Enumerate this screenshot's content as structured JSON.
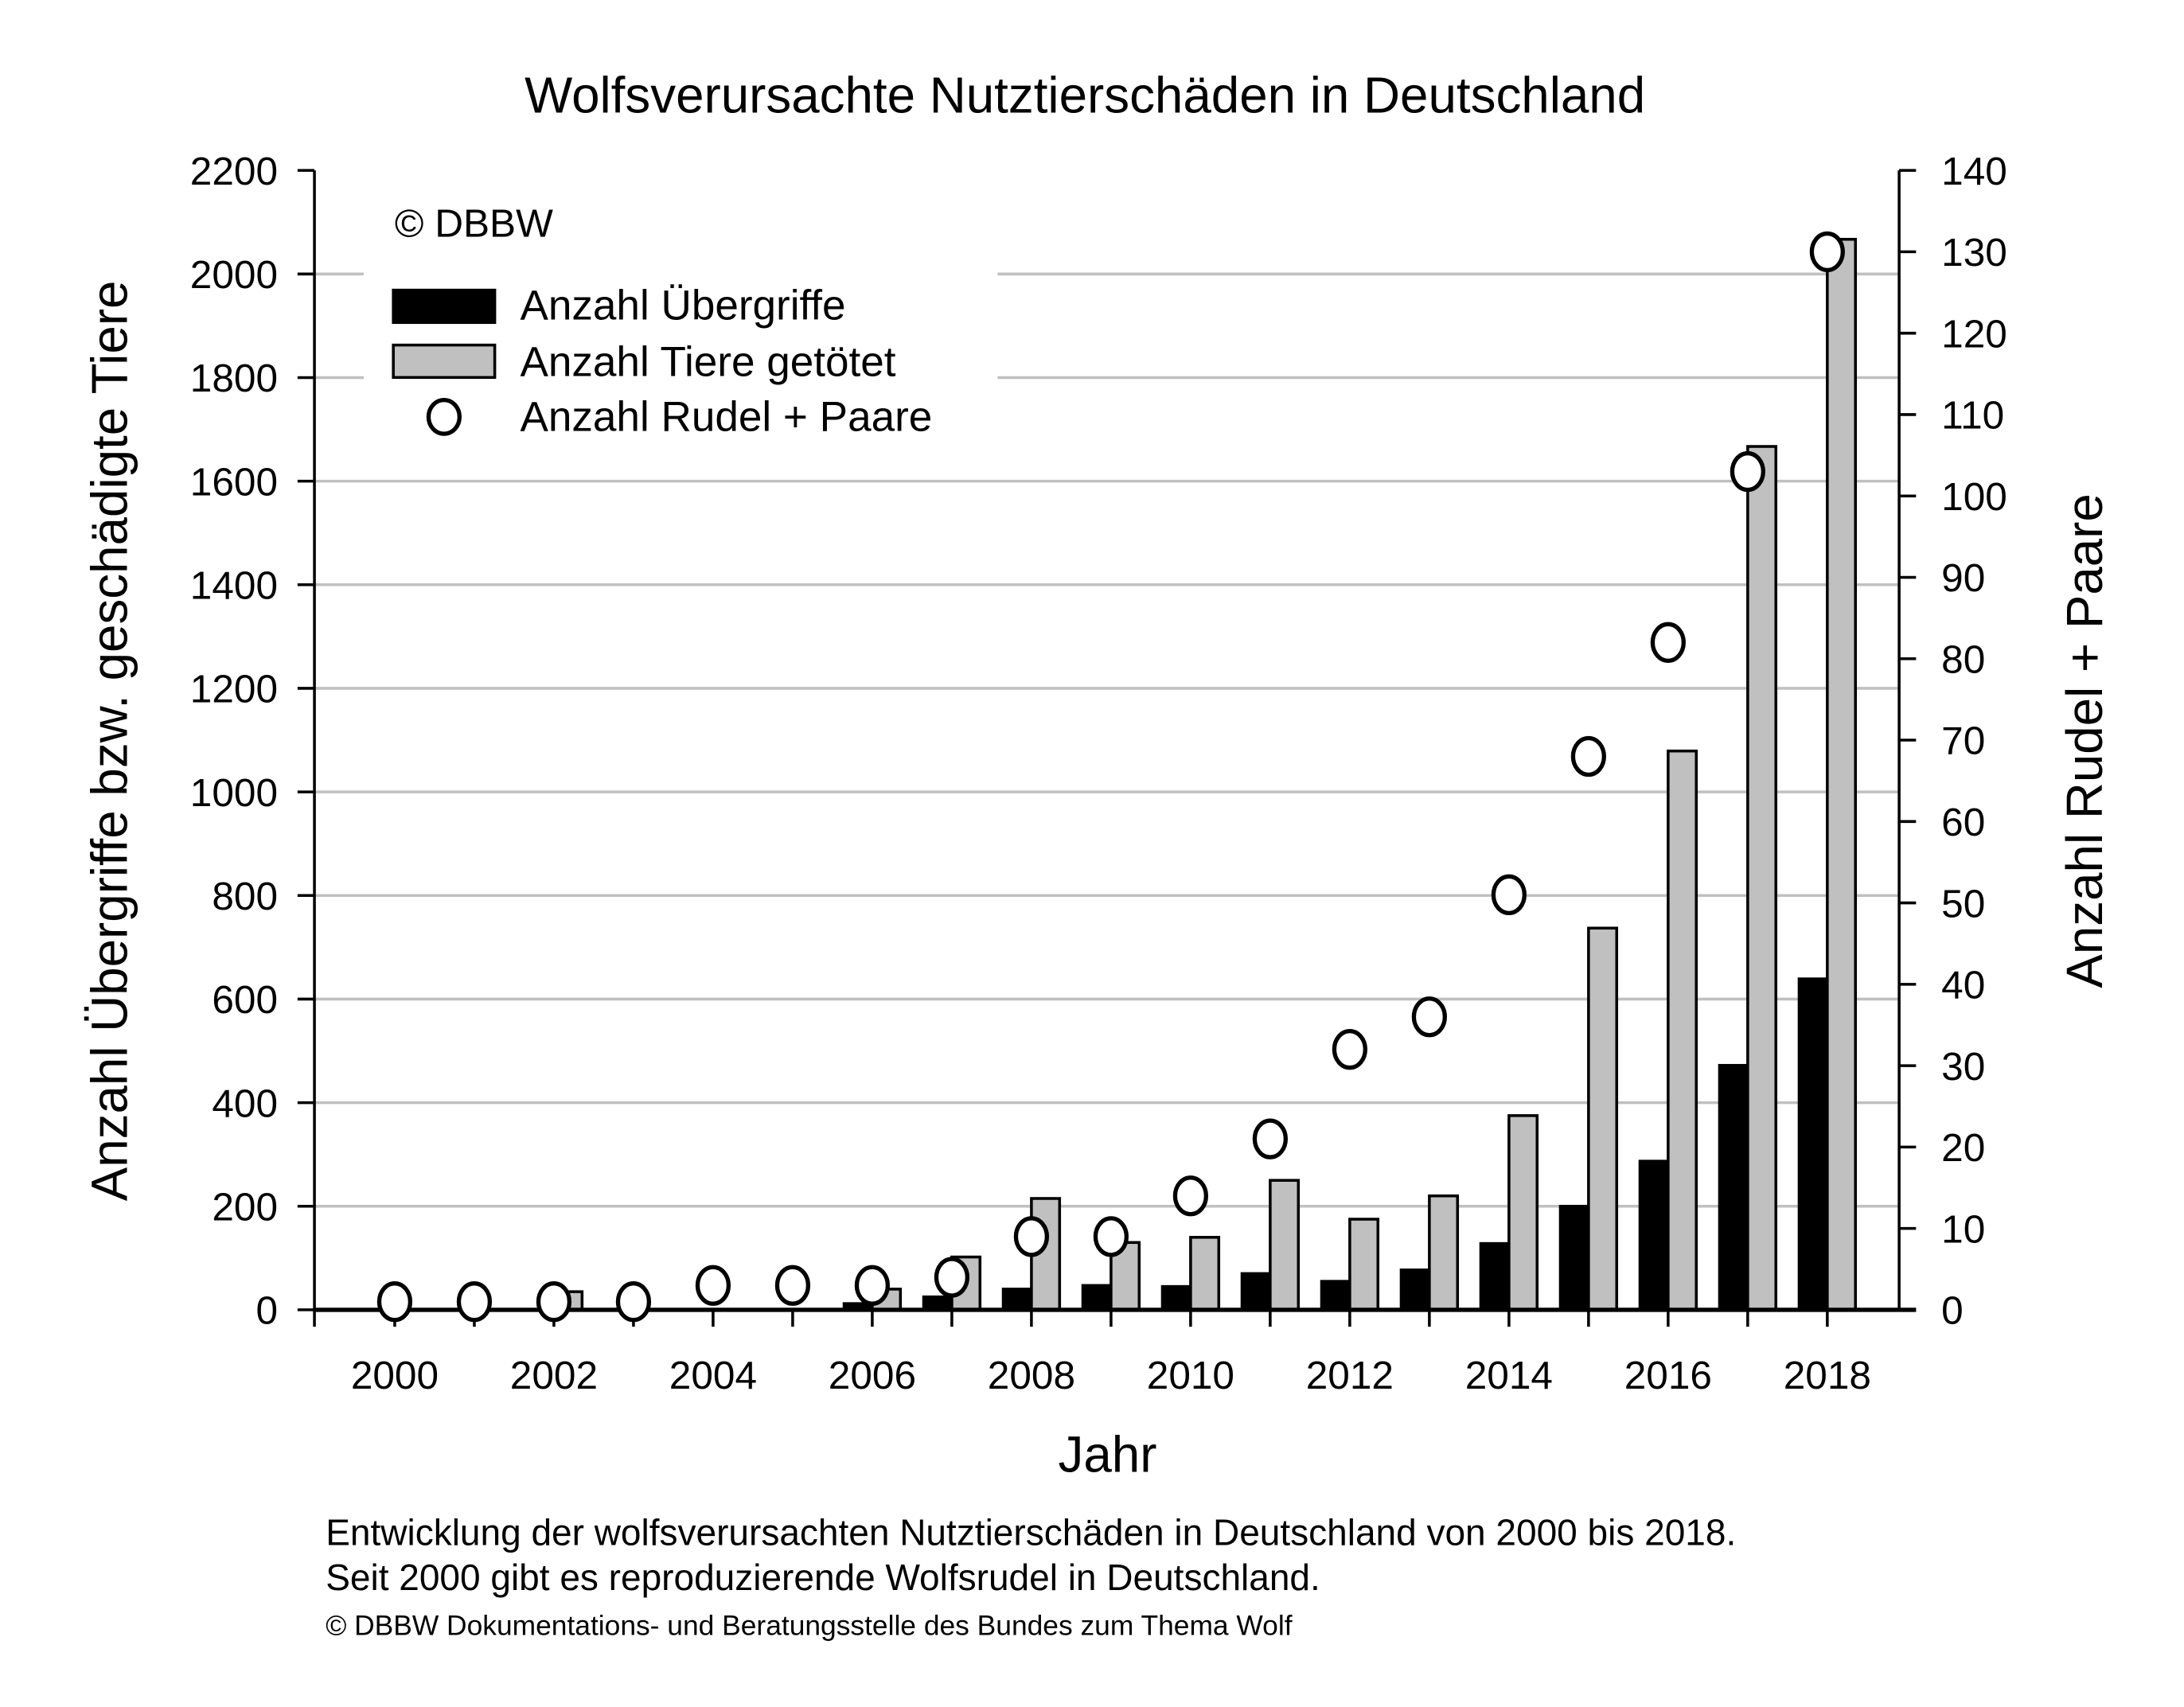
{
  "chart_data": {
    "type": "bar",
    "title": "Wolfsverursachte Nutztierschäden in Deutschland",
    "xlabel": "Jahr",
    "ylabel": "Anzahl Übergriffe bzw. geschädigte Tiere",
    "y2label": "Anzahl Rudel + Paare",
    "ylim": [
      0,
      2200
    ],
    "y2lim": [
      0,
      140
    ],
    "yticks": [
      0,
      200,
      400,
      600,
      800,
      1000,
      1200,
      1400,
      1600,
      1800,
      2000,
      2200
    ],
    "y2ticks": [
      0,
      10,
      20,
      30,
      40,
      50,
      60,
      70,
      80,
      90,
      100,
      110,
      120,
      130,
      140
    ],
    "xticklabels": [
      "2000",
      "2002",
      "2004",
      "2006",
      "2008",
      "2010",
      "2012",
      "2014",
      "2016",
      "2018"
    ],
    "grid": true,
    "legend_position": "top-left",
    "copyright": "© DBBW",
    "categories": [
      2000,
      2001,
      2002,
      2003,
      2004,
      2005,
      2006,
      2007,
      2008,
      2009,
      2010,
      2011,
      2012,
      2013,
      2014,
      2015,
      2016,
      2017,
      2018
    ],
    "series": [
      {
        "name": "Anzahl Übergriffe",
        "type": "bar",
        "axis": "left",
        "color": "#000000",
        "values": [
          0,
          0,
          0,
          0,
          0,
          0,
          12,
          25,
          40,
          47,
          45,
          70,
          55,
          77,
          128,
          200,
          287,
          472,
          639
        ]
      },
      {
        "name": "Anzahl Tiere getötet",
        "type": "bar",
        "axis": "left",
        "color": "#c0c0c0",
        "values": [
          0,
          0,
          35,
          0,
          0,
          0,
          40,
          102,
          215,
          130,
          140,
          250,
          175,
          220,
          375,
          737,
          1079,
          1667,
          2067
        ]
      },
      {
        "name": "Anzahl Rudel + Paare",
        "type": "scatter",
        "axis": "right",
        "color": "#ffffff",
        "values": [
          1,
          1,
          1,
          1,
          3,
          3,
          3,
          4,
          9,
          9,
          14,
          21,
          32,
          36,
          51,
          68,
          82,
          103,
          130
        ]
      }
    ]
  },
  "caption": {
    "line1": "Entwicklung der wolfsverursachten Nutztierschäden in Deutschland von 2000 bis 2018.",
    "line2": "Seit 2000 gibt es reproduzierende Wolfsrudel in Deutschland.",
    "source": "© DBBW Dokumentations- und Beratungsstelle des Bundes zum Thema Wolf"
  }
}
